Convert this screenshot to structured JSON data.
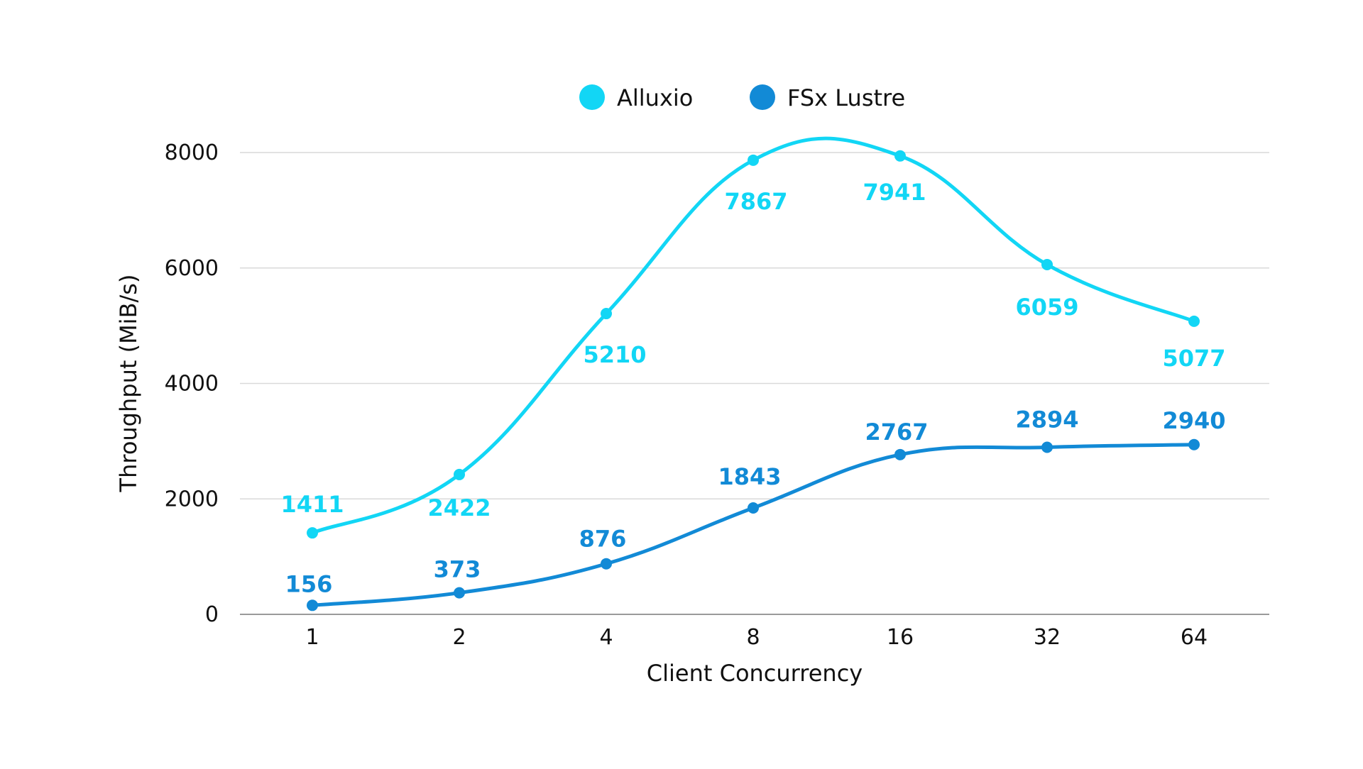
{
  "chart_data": {
    "type": "line",
    "title": "",
    "xlabel": "Client Concurrency",
    "ylabel": "Throughput (MiB/s)",
    "categories": [
      "1",
      "2",
      "4",
      "8",
      "16",
      "32",
      "64"
    ],
    "yticks": [
      "0",
      "2000",
      "4000",
      "6000",
      "8000"
    ],
    "ylim": [
      0,
      8000
    ],
    "grid": true,
    "legend_position": "top-center",
    "series": [
      {
        "name": "Alluxio",
        "color": "#12D6F5",
        "values": [
          1411,
          2422,
          5210,
          7867,
          7941,
          6059,
          5077
        ],
        "labels": [
          "1411",
          "2422",
          "5210",
          "7867",
          "7941",
          "6059",
          "5077"
        ]
      },
      {
        "name": "FSx Lustre",
        "color": "#128AD6",
        "values": [
          156,
          373,
          876,
          1843,
          2767,
          2894,
          2940
        ],
        "labels": [
          "156",
          "373",
          "876",
          "1843",
          "2767",
          "2894",
          "2940"
        ]
      }
    ]
  }
}
